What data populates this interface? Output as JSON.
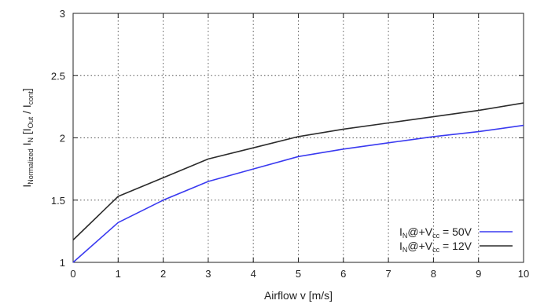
{
  "chart_data": {
    "type": "line",
    "xlabel": "Airflow v [m/s]",
    "ylabel": {
      "main": "I",
      "main_sub": "Normalized",
      "mid": " I",
      "mid_sub": "N",
      "open": " [I",
      "out_sub": "Out",
      "slash": " / I",
      "cont_sub": "cont",
      "close": "]"
    },
    "xlim": [
      0,
      10
    ],
    "ylim": [
      1,
      3
    ],
    "xticks": [
      0,
      1,
      2,
      3,
      4,
      5,
      6,
      7,
      8,
      9,
      10
    ],
    "yticks": [
      1,
      1.5,
      2,
      2.5,
      3
    ],
    "ytick_labels": [
      "1",
      "1.5",
      "2",
      "2.5",
      "3"
    ],
    "grid": true,
    "legend_position": "bottom-right",
    "x": [
      0,
      1,
      2,
      3,
      4,
      5,
      6,
      7,
      8,
      9,
      10
    ],
    "series": [
      {
        "legend": {
          "a": "I",
          "a_sub": "N",
          "b": "@+V",
          "b_sub": "cc",
          "c": " = 50V"
        },
        "color": "#3a3af0",
        "values": [
          1.0,
          1.32,
          1.5,
          1.65,
          1.75,
          1.85,
          1.91,
          1.96,
          2.01,
          2.05,
          2.1
        ]
      },
      {
        "legend": {
          "a": "I",
          "a_sub": "N",
          "b": "@+V",
          "b_sub": "cc",
          "c": " = 12V"
        },
        "color": "#2b2b2b",
        "values": [
          1.18,
          1.53,
          1.68,
          1.83,
          1.92,
          2.01,
          2.07,
          2.12,
          2.17,
          2.22,
          2.28
        ]
      }
    ]
  }
}
